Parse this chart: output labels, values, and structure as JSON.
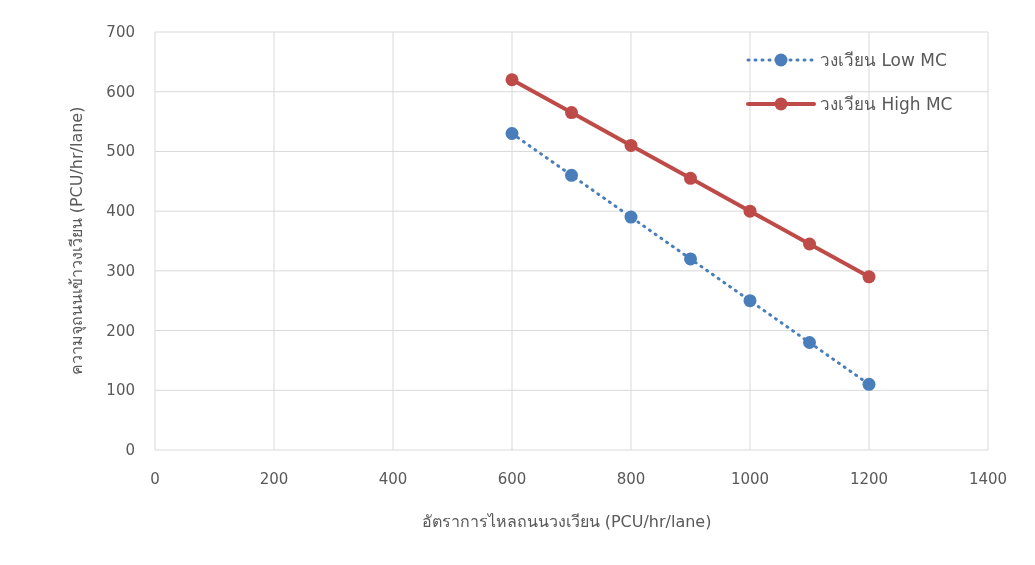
{
  "chart_data": {
    "type": "line",
    "xlabel": "อัตราการไหลถนนวงเวียน (PCU/hr/lane)",
    "ylabel": "ความจุถนนเข้าวงเวียน (PCU/hr/lane)",
    "x": [
      600,
      700,
      800,
      900,
      1000,
      1100,
      1200
    ],
    "series": [
      {
        "name": "วงเวียน Low MC",
        "color": "#4a7ebb",
        "line_style": "dotted",
        "values": [
          530,
          460,
          390,
          320,
          250,
          180,
          110
        ]
      },
      {
        "name": "วงเวียน High MC",
        "color": "#be4b48",
        "line_style": "solid",
        "values": [
          620,
          565,
          510,
          455,
          400,
          345,
          290
        ]
      }
    ],
    "xlim": [
      0,
      1400
    ],
    "xticks": [
      0,
      200,
      400,
      600,
      800,
      1000,
      1200,
      1400
    ],
    "ylim": [
      0,
      700
    ],
    "yticks": [
      0,
      100,
      200,
      300,
      400,
      500,
      600,
      700
    ],
    "grid": true,
    "legend": "top right",
    "marker": "circle"
  }
}
